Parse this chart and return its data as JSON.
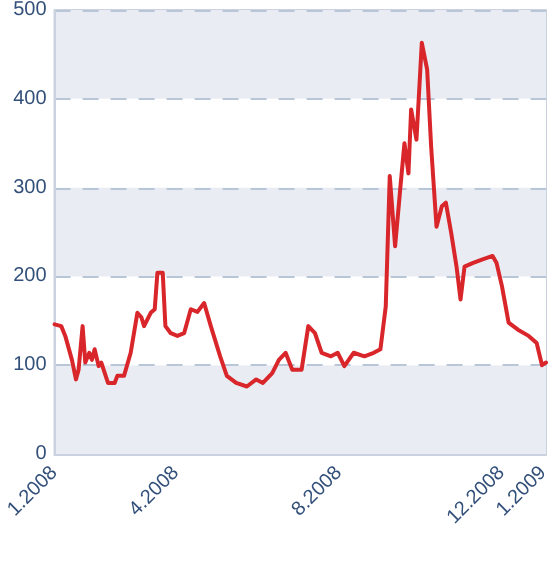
{
  "chart_data": {
    "type": "line",
    "x": [
      "2008-01-01",
      "2008-01-06",
      "2008-01-09",
      "2008-01-14",
      "2008-01-17",
      "2008-01-19",
      "2008-01-22",
      "2008-01-24",
      "2008-01-27",
      "2008-01-29",
      "2008-01-31",
      "2008-02-03",
      "2008-02-05",
      "2008-02-10",
      "2008-02-15",
      "2008-02-17",
      "2008-02-22",
      "2008-02-27",
      "2008-03-03",
      "2008-03-06",
      "2008-03-08",
      "2008-03-13",
      "2008-03-16",
      "2008-03-18",
      "2008-03-22",
      "2008-03-24",
      "2008-03-28",
      "2008-04-02",
      "2008-04-07",
      "2008-04-12",
      "2008-04-17",
      "2008-04-22",
      "2008-04-27",
      "2008-05-04",
      "2008-05-09",
      "2008-05-16",
      "2008-05-24",
      "2008-05-31",
      "2008-06-05",
      "2008-06-12",
      "2008-06-17",
      "2008-06-22",
      "2008-06-27",
      "2008-07-04",
      "2008-07-09",
      "2008-07-14",
      "2008-07-19",
      "2008-07-26",
      "2008-07-31",
      "2008-08-05",
      "2008-08-12",
      "2008-08-20",
      "2008-08-27",
      "2008-09-01",
      "2008-09-05",
      "2008-09-08",
      "2008-09-12",
      "2008-09-16",
      "2008-09-19",
      "2008-09-22",
      "2008-09-24",
      "2008-09-28",
      "2008-10-02",
      "2008-10-06",
      "2008-10-09",
      "2008-10-13",
      "2008-10-17",
      "2008-10-20",
      "2008-10-24",
      "2008-10-28",
      "2008-10-31",
      "2008-11-03",
      "2008-11-09",
      "2008-11-16",
      "2008-11-24",
      "2008-11-27",
      "2008-12-01",
      "2008-12-06",
      "2008-12-13",
      "2008-12-21",
      "2008-12-27",
      "2008-12-31",
      "2009-01-03"
    ],
    "series": [
      {
        "color": "#d9262b",
        "values": [
          146,
          144,
          133,
          106,
          84,
          95,
          144,
          103,
          114,
          106,
          118,
          99,
          103,
          80,
          80,
          88,
          88,
          114,
          159,
          154,
          144,
          159,
          163,
          204,
          204,
          144,
          136,
          133,
          136,
          163,
          160,
          170,
          144,
          110,
          88,
          80,
          76,
          84,
          80,
          91,
          106,
          114,
          95,
          95,
          144,
          136,
          114,
          110,
          114,
          99,
          114,
          110,
          114,
          118,
          166,
          313,
          234,
          301,
          350,
          316,
          388,
          354,
          463,
          433,
          346,
          256,
          279,
          283,
          249,
          211,
          174,
          211,
          215,
          219,
          223,
          215,
          189,
          148,
          140,
          133,
          125,
          100,
          103
        ]
      }
    ],
    "xlim": [
      "2008-01-01",
      "2009-01-03"
    ],
    "xticks": [
      {
        "value": "2008-01-01",
        "label": "1.2008"
      },
      {
        "value": "2008-04-01",
        "label": "4.2008"
      },
      {
        "value": "2008-08-01",
        "label": "8.2008"
      },
      {
        "value": "2008-12-01",
        "label": "12.2008"
      },
      {
        "value": "2009-01-01",
        "label": "1.2009"
      }
    ],
    "ylim": [
      0,
      500
    ],
    "yticks": [
      0,
      100,
      200,
      300,
      400,
      500
    ],
    "grid": "y",
    "marker": "none",
    "line_style": "solid"
  }
}
